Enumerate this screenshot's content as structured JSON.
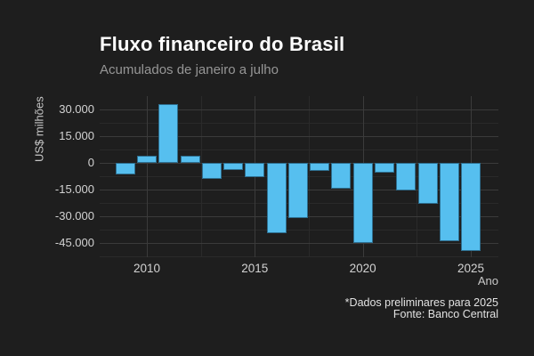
{
  "title": "Fluxo financeiro do Brasil",
  "subtitle": "Acumulados de janeiro a julho",
  "caption": {
    "line1": "*Dados preliminares para 2025",
    "line2": "Fonte: Banco Central"
  },
  "colors": {
    "background": "#1e1e1e",
    "bar_fill": "#56bfef",
    "grid_major": "#3b3b3b",
    "grid_minor": "#2a2a2a",
    "title_text": "#ffffff",
    "subtitle_text": "#969696",
    "axis_text": "#d2d2d2",
    "caption_text": "#e2e2e2"
  },
  "chart_data": {
    "type": "bar",
    "title": "Fluxo financeiro do Brasil",
    "subtitle": "Acumulados de janeiro a julho",
    "xlabel": "Ano",
    "ylabel": "US$ milhões",
    "caption": [
      "*Dados preliminares para 2025",
      "Fonte: Banco Central"
    ],
    "categories": [
      2009,
      2010,
      2011,
      2012,
      2013,
      2014,
      2015,
      2016,
      2017,
      2018,
      2019,
      2020,
      2021,
      2022,
      2023,
      2024,
      2025
    ],
    "values": [
      -6500,
      4000,
      33000,
      4000,
      -9000,
      -4000,
      -8000,
      -39500,
      -31000,
      -4500,
      -14500,
      -45000,
      -5500,
      -15500,
      -23000,
      -44000,
      -49500
    ],
    "unit": "US$ milhões",
    "ylim": [
      -53500,
      37500
    ],
    "y_major_ticks": [
      30000,
      15000,
      0,
      -15000,
      -30000,
      -45000
    ],
    "y_major_tick_labels": [
      "30.000",
      "15.000",
      "0",
      "-15.000",
      "-30.000",
      "-45.000"
    ],
    "y_minor_ticks": [
      22500,
      7500,
      -7500,
      -22500,
      -37500,
      -52500
    ],
    "x_major_ticks": [
      2010,
      2015,
      2020,
      2025
    ],
    "x_major_tick_labels": [
      "2010",
      "2015",
      "2020",
      "2025"
    ],
    "x_minor_ticks": [
      2012.5,
      2017.5,
      2022.5
    ],
    "grid": true,
    "legend": false,
    "bar_color": "#56bfef",
    "theme": "dark"
  }
}
